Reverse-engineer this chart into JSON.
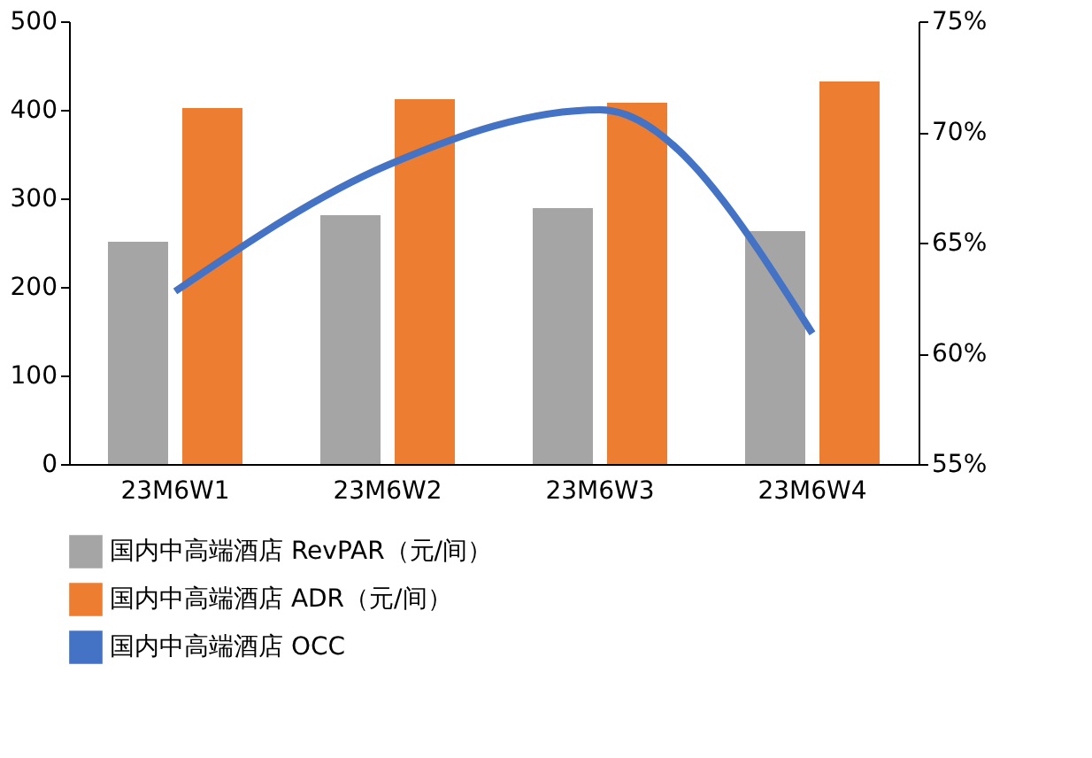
{
  "chart_data": {
    "type": "bar",
    "categories": [
      "23M6W1",
      "23M6W2",
      "23M6W3",
      "23M6W4"
    ],
    "series": [
      {
        "name": "国内中高端酒店 RevPAR（元/间）",
        "color": "#a5a5a5",
        "values": [
          251,
          281,
          289,
          263
        ]
      },
      {
        "name": "国内中高端酒店 ADR（元/间）",
        "color": "#ed7d31",
        "values": [
          402,
          412,
          408,
          432
        ]
      },
      {
        "name": "国内中高端酒店 OCC",
        "color": "#4472c4",
        "type": "line",
        "axis": "y2",
        "values": [
          62.8,
          68.5,
          71.0,
          60.9
        ]
      }
    ],
    "ylim": [
      0,
      500
    ],
    "yticks": [
      0,
      100,
      200,
      300,
      400,
      500
    ],
    "y2lim": [
      55,
      75
    ],
    "y2ticks": [
      {
        "value": 55,
        "label": "55%"
      },
      {
        "value": 60,
        "label": "60%"
      },
      {
        "value": 65,
        "label": "65%"
      },
      {
        "value": 70,
        "label": "70%"
      },
      {
        "value": 75,
        "label": "75%"
      }
    ],
    "grid": false,
    "legend": "bottom"
  }
}
